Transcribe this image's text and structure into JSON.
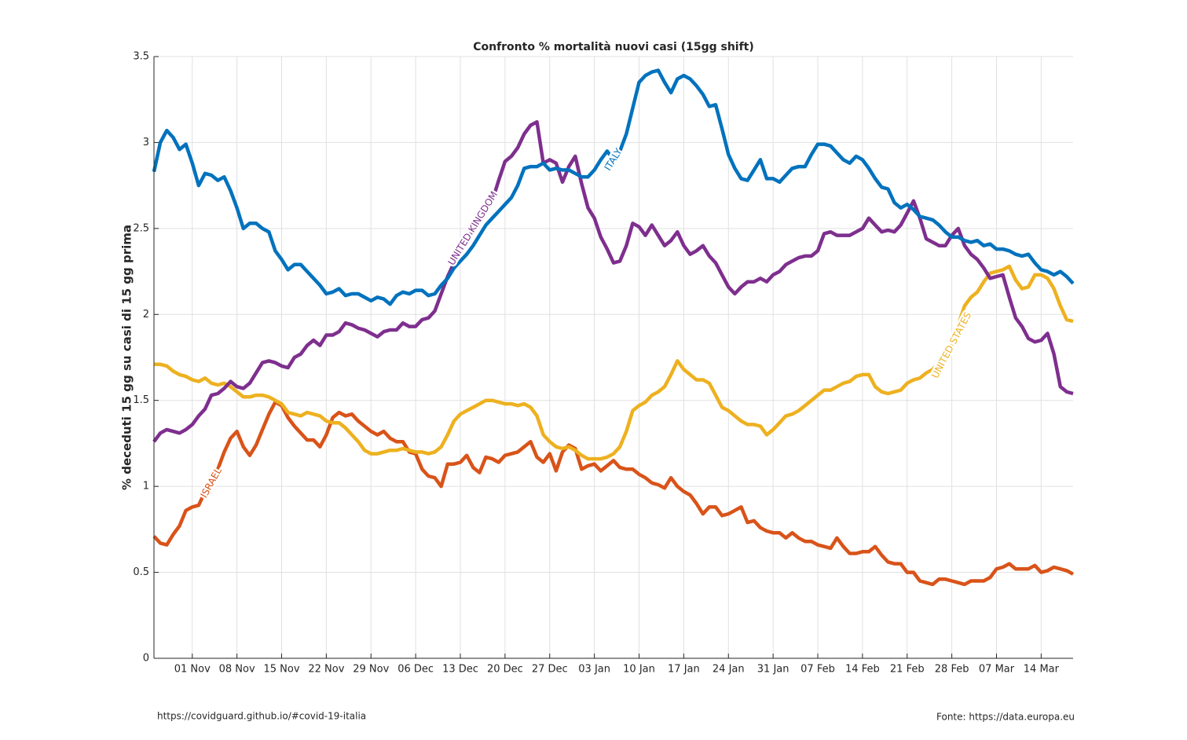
{
  "chart_data": {
    "type": "line",
    "title": "Confronto % mortalità nuovi casi (15gg shift)",
    "y_label": "% deceduti 15 gg su casi di 15 gg prima",
    "footer_left": "https://covidguard.github.io/#covid-19-italia",
    "footer_right": "Fonte: https://data.europa.eu",
    "categories": [
      null,
      null,
      null,
      null,
      null,
      null,
      "01 Nov",
      null,
      null,
      null,
      null,
      null,
      null,
      "08 Nov",
      null,
      null,
      null,
      null,
      null,
      null,
      "15 Nov",
      null,
      null,
      null,
      null,
      null,
      null,
      "22 Nov",
      null,
      null,
      null,
      null,
      null,
      null,
      "29 Nov",
      null,
      null,
      null,
      null,
      null,
      null,
      "06 Dec",
      null,
      null,
      null,
      null,
      null,
      null,
      "13 Dec",
      null,
      null,
      null,
      null,
      null,
      null,
      "20 Dec",
      null,
      null,
      null,
      null,
      null,
      null,
      "27 Dec",
      null,
      null,
      null,
      null,
      null,
      null,
      "03 Jan",
      null,
      null,
      null,
      null,
      null,
      null,
      "10 Jan",
      null,
      null,
      null,
      null,
      null,
      null,
      "17 Jan",
      null,
      null,
      null,
      null,
      null,
      null,
      "24 Jan",
      null,
      null,
      null,
      null,
      null,
      null,
      "31 Jan",
      null,
      null,
      null,
      null,
      null,
      null,
      "07 Feb",
      null,
      null,
      null,
      null,
      null,
      null,
      "14 Feb",
      null,
      null,
      null,
      null,
      null,
      null,
      "21 Feb",
      null,
      null,
      null,
      null,
      null,
      null,
      "28 Feb",
      null,
      null,
      null,
      null,
      null,
      null,
      "07 Mar",
      null,
      null,
      null,
      null,
      null,
      null,
      "14 Mar",
      null,
      null,
      null,
      null,
      null
    ],
    "ylim": [
      0,
      3.5
    ],
    "yticks": [
      0,
      0.5,
      1,
      1.5,
      2,
      2.5,
      3,
      3.5
    ],
    "grid": true,
    "series": [
      {
        "name": "ITALY",
        "color": "#0072bd",
        "values": [
          2.83,
          3.0,
          3.07,
          3.03,
          2.96,
          2.99,
          2.88,
          2.75,
          2.82,
          2.81,
          2.78,
          2.8,
          2.72,
          2.62,
          2.5,
          2.53,
          2.53,
          2.5,
          2.48,
          2.37,
          2.32,
          2.26,
          2.29,
          2.29,
          2.25,
          2.21,
          2.17,
          2.12,
          2.13,
          2.15,
          2.11,
          2.12,
          2.12,
          2.1,
          2.08,
          2.1,
          2.09,
          2.06,
          2.11,
          2.13,
          2.12,
          2.14,
          2.14,
          2.11,
          2.12,
          2.17,
          2.21,
          2.27,
          2.31,
          2.35,
          2.4,
          2.46,
          2.52,
          2.56,
          2.6,
          2.64,
          2.68,
          2.75,
          2.85,
          2.86,
          2.86,
          2.88,
          2.84,
          2.85,
          2.84,
          2.84,
          2.82,
          2.8,
          2.8,
          2.84,
          2.9,
          2.95,
          2.9,
          2.95,
          3.05,
          3.2,
          3.35,
          3.39,
          3.41,
          3.42,
          3.35,
          3.29,
          3.37,
          3.39,
          3.37,
          3.33,
          3.28,
          3.21,
          3.22,
          3.08,
          2.93,
          2.85,
          2.79,
          2.78,
          2.84,
          2.9,
          2.79,
          2.79,
          2.77,
          2.81,
          2.85,
          2.86,
          2.86,
          2.93,
          2.99,
          2.99,
          2.98,
          2.94,
          2.9,
          2.88,
          2.92,
          2.9,
          2.85,
          2.79,
          2.74,
          2.73,
          2.65,
          2.62,
          2.64,
          2.61,
          2.57,
          2.56,
          2.55,
          2.52,
          2.48,
          2.45,
          2.45,
          2.43,
          2.42,
          2.43,
          2.4,
          2.41,
          2.38,
          2.38,
          2.37,
          2.35,
          2.34,
          2.35,
          2.3,
          2.26,
          2.25,
          2.23,
          2.25,
          2.22,
          2.18
        ]
      },
      {
        "name": "UNITED KINGDOM",
        "color": "#7e2f8e",
        "values": [
          1.26,
          1.31,
          1.33,
          1.32,
          1.31,
          1.33,
          1.36,
          1.41,
          1.45,
          1.53,
          1.54,
          1.57,
          1.61,
          1.58,
          1.57,
          1.6,
          1.66,
          1.72,
          1.73,
          1.72,
          1.7,
          1.69,
          1.75,
          1.77,
          1.82,
          1.85,
          1.82,
          1.88,
          1.88,
          1.9,
          1.95,
          1.94,
          1.92,
          1.91,
          1.89,
          1.87,
          1.9,
          1.91,
          1.91,
          1.95,
          1.93,
          1.93,
          1.97,
          1.98,
          2.02,
          2.12,
          2.22,
          2.3,
          2.35,
          2.42,
          2.5,
          2.55,
          2.6,
          2.66,
          2.78,
          2.89,
          2.92,
          2.97,
          3.05,
          3.1,
          3.12,
          2.88,
          2.9,
          2.88,
          2.77,
          2.86,
          2.92,
          2.76,
          2.62,
          2.56,
          2.45,
          2.38,
          2.3,
          2.31,
          2.4,
          2.53,
          2.51,
          2.46,
          2.52,
          2.46,
          2.4,
          2.43,
          2.48,
          2.4,
          2.35,
          2.37,
          2.4,
          2.34,
          2.3,
          2.23,
          2.16,
          2.12,
          2.16,
          2.19,
          2.19,
          2.21,
          2.19,
          2.23,
          2.25,
          2.29,
          2.31,
          2.33,
          2.34,
          2.34,
          2.37,
          2.47,
          2.48,
          2.46,
          2.46,
          2.46,
          2.48,
          2.5,
          2.56,
          2.52,
          2.48,
          2.49,
          2.48,
          2.52,
          2.59,
          2.66,
          2.56,
          2.44,
          2.42,
          2.4,
          2.4,
          2.46,
          2.5,
          2.4,
          2.35,
          2.32,
          2.27,
          2.21,
          2.22,
          2.23,
          2.1,
          1.98,
          1.93,
          1.86,
          1.84,
          1.85,
          1.89,
          1.77,
          1.58,
          1.55,
          1.54
        ]
      },
      {
        "name": "UNITED STATES",
        "color": "#edb120",
        "values": [
          1.71,
          1.71,
          1.7,
          1.67,
          1.65,
          1.64,
          1.62,
          1.61,
          1.63,
          1.6,
          1.59,
          1.6,
          1.58,
          1.55,
          1.52,
          1.52,
          1.53,
          1.53,
          1.52,
          1.5,
          1.48,
          1.43,
          1.42,
          1.41,
          1.43,
          1.42,
          1.41,
          1.38,
          1.37,
          1.37,
          1.34,
          1.3,
          1.26,
          1.21,
          1.19,
          1.19,
          1.2,
          1.21,
          1.21,
          1.22,
          1.21,
          1.2,
          1.2,
          1.19,
          1.2,
          1.23,
          1.3,
          1.38,
          1.42,
          1.44,
          1.46,
          1.48,
          1.5,
          1.5,
          1.49,
          1.48,
          1.48,
          1.47,
          1.48,
          1.46,
          1.41,
          1.3,
          1.26,
          1.23,
          1.22,
          1.23,
          1.21,
          1.18,
          1.16,
          1.16,
          1.16,
          1.17,
          1.19,
          1.23,
          1.32,
          1.44,
          1.47,
          1.49,
          1.53,
          1.55,
          1.58,
          1.65,
          1.73,
          1.68,
          1.65,
          1.62,
          1.62,
          1.6,
          1.53,
          1.46,
          1.44,
          1.41,
          1.38,
          1.36,
          1.36,
          1.35,
          1.3,
          1.33,
          1.37,
          1.41,
          1.42,
          1.44,
          1.47,
          1.5,
          1.53,
          1.56,
          1.56,
          1.58,
          1.6,
          1.61,
          1.64,
          1.65,
          1.65,
          1.58,
          1.55,
          1.54,
          1.55,
          1.56,
          1.6,
          1.62,
          1.63,
          1.66,
          1.68,
          1.72,
          1.74,
          1.82,
          1.94,
          2.05,
          2.1,
          2.13,
          2.19,
          2.24,
          2.25,
          2.26,
          2.28,
          2.2,
          2.15,
          2.16,
          2.23,
          2.23,
          2.21,
          2.15,
          2.05,
          1.97,
          1.96
        ]
      },
      {
        "name": "ISRAEL",
        "color": "#d95319",
        "values": [
          0.71,
          0.67,
          0.66,
          0.72,
          0.77,
          0.86,
          0.88,
          0.89,
          0.97,
          1.02,
          1.1,
          1.2,
          1.28,
          1.32,
          1.23,
          1.18,
          1.24,
          1.33,
          1.42,
          1.49,
          1.47,
          1.4,
          1.35,
          1.31,
          1.27,
          1.27,
          1.23,
          1.3,
          1.4,
          1.43,
          1.41,
          1.42,
          1.38,
          1.35,
          1.32,
          1.3,
          1.32,
          1.28,
          1.26,
          1.26,
          1.2,
          1.19,
          1.1,
          1.06,
          1.05,
          1.0,
          1.13,
          1.13,
          1.14,
          1.18,
          1.11,
          1.08,
          1.17,
          1.16,
          1.14,
          1.18,
          1.19,
          1.2,
          1.23,
          1.26,
          1.17,
          1.14,
          1.19,
          1.09,
          1.2,
          1.24,
          1.22,
          1.1,
          1.12,
          1.13,
          1.09,
          1.12,
          1.15,
          1.11,
          1.1,
          1.1,
          1.07,
          1.05,
          1.02,
          1.01,
          0.99,
          1.05,
          1.0,
          0.97,
          0.95,
          0.9,
          0.84,
          0.88,
          0.88,
          0.83,
          0.84,
          0.86,
          0.88,
          0.79,
          0.8,
          0.76,
          0.74,
          0.73,
          0.73,
          0.7,
          0.73,
          0.7,
          0.68,
          0.68,
          0.66,
          0.65,
          0.64,
          0.7,
          0.65,
          0.61,
          0.61,
          0.62,
          0.62,
          0.65,
          0.6,
          0.56,
          0.55,
          0.55,
          0.5,
          0.5,
          0.45,
          0.44,
          0.43,
          0.46,
          0.46,
          0.45,
          0.44,
          0.43,
          0.45,
          0.45,
          0.45,
          0.47,
          0.52,
          0.53,
          0.55,
          0.52,
          0.52,
          0.52,
          0.54,
          0.5,
          0.51,
          0.53,
          0.52,
          0.51,
          0.49
        ]
      }
    ]
  }
}
